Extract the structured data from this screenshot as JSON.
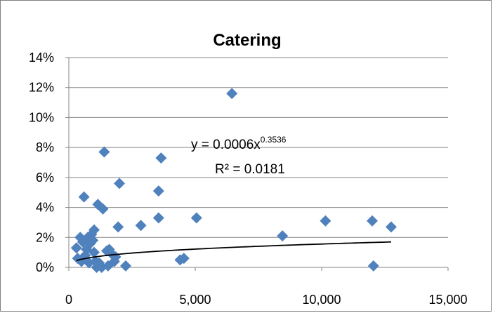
{
  "chart_data": {
    "type": "scatter",
    "title": "Catering",
    "xlabel": "",
    "ylabel": "",
    "xlim": [
      0,
      15000
    ],
    "ylim": [
      0,
      0.14
    ],
    "x_ticks": [
      {
        "value": 0,
        "label": "0"
      },
      {
        "value": 5000,
        "label": "5,000"
      },
      {
        "value": 10000,
        "label": "10,000"
      },
      {
        "value": 15000,
        "label": "15,000"
      }
    ],
    "y_ticks": [
      {
        "value": 0,
        "label": "0%"
      },
      {
        "value": 0.02,
        "label": "2%"
      },
      {
        "value": 0.04,
        "label": "4%"
      },
      {
        "value": 0.06,
        "label": "6%"
      },
      {
        "value": 0.08,
        "label": "8%"
      },
      {
        "value": 0.1,
        "label": "10%"
      },
      {
        "value": 0.12,
        "label": "12%"
      },
      {
        "value": 0.14,
        "label": "14%"
      }
    ],
    "grid": "horizontal",
    "legend": "none",
    "marker_color": "#4f81bd",
    "marker_shape": "diamond",
    "trendline_color": "#000000",
    "series": [
      {
        "points": [
          {
            "x": 300,
            "y": 0.013
          },
          {
            "x": 350,
            "y": 0.006
          },
          {
            "x": 450,
            "y": 0.02
          },
          {
            "x": 500,
            "y": 0.004
          },
          {
            "x": 550,
            "y": 0.017
          },
          {
            "x": 600,
            "y": 0.047
          },
          {
            "x": 650,
            "y": 0.008
          },
          {
            "x": 700,
            "y": 0.012
          },
          {
            "x": 750,
            "y": 0.02
          },
          {
            "x": 800,
            "y": 0.003
          },
          {
            "x": 850,
            "y": 0.016
          },
          {
            "x": 900,
            "y": 0.022
          },
          {
            "x": 950,
            "y": 0.018
          },
          {
            "x": 1000,
            "y": 0.025
          },
          {
            "x": 1000,
            "y": 0.01
          },
          {
            "x": 1050,
            "y": 0.004
          },
          {
            "x": 1100,
            "y": 0.0
          },
          {
            "x": 1150,
            "y": 0.042
          },
          {
            "x": 1200,
            "y": 0.003
          },
          {
            "x": 1300,
            "y": 0.0
          },
          {
            "x": 1350,
            "y": 0.039
          },
          {
            "x": 1400,
            "y": 0.077
          },
          {
            "x": 1500,
            "y": 0.011
          },
          {
            "x": 1550,
            "y": 0.001
          },
          {
            "x": 1600,
            "y": 0.012
          },
          {
            "x": 1700,
            "y": 0.009
          },
          {
            "x": 1800,
            "y": 0.004
          },
          {
            "x": 1850,
            "y": 0.007
          },
          {
            "x": 1950,
            "y": 0.027
          },
          {
            "x": 2000,
            "y": 0.056
          },
          {
            "x": 2250,
            "y": 0.001
          },
          {
            "x": 2850,
            "y": 0.028
          },
          {
            "x": 3550,
            "y": 0.051
          },
          {
            "x": 3550,
            "y": 0.033
          },
          {
            "x": 3650,
            "y": 0.073
          },
          {
            "x": 4400,
            "y": 0.005
          },
          {
            "x": 4550,
            "y": 0.006
          },
          {
            "x": 5050,
            "y": 0.033
          },
          {
            "x": 6450,
            "y": 0.116
          },
          {
            "x": 8450,
            "y": 0.021
          },
          {
            "x": 10150,
            "y": 0.031
          },
          {
            "x": 12000,
            "y": 0.031
          },
          {
            "x": 12050,
            "y": 0.001
          },
          {
            "x": 12750,
            "y": 0.027
          }
        ]
      }
    ],
    "trendline": {
      "type": "power",
      "coefficient": 0.0006,
      "exponent": 0.3536,
      "x_range": [
        300,
        12750
      ],
      "equation_prefix": "y = 0.0006x",
      "equation_exponent": "0.3536",
      "r_squared": "R² = 0.0181"
    }
  }
}
